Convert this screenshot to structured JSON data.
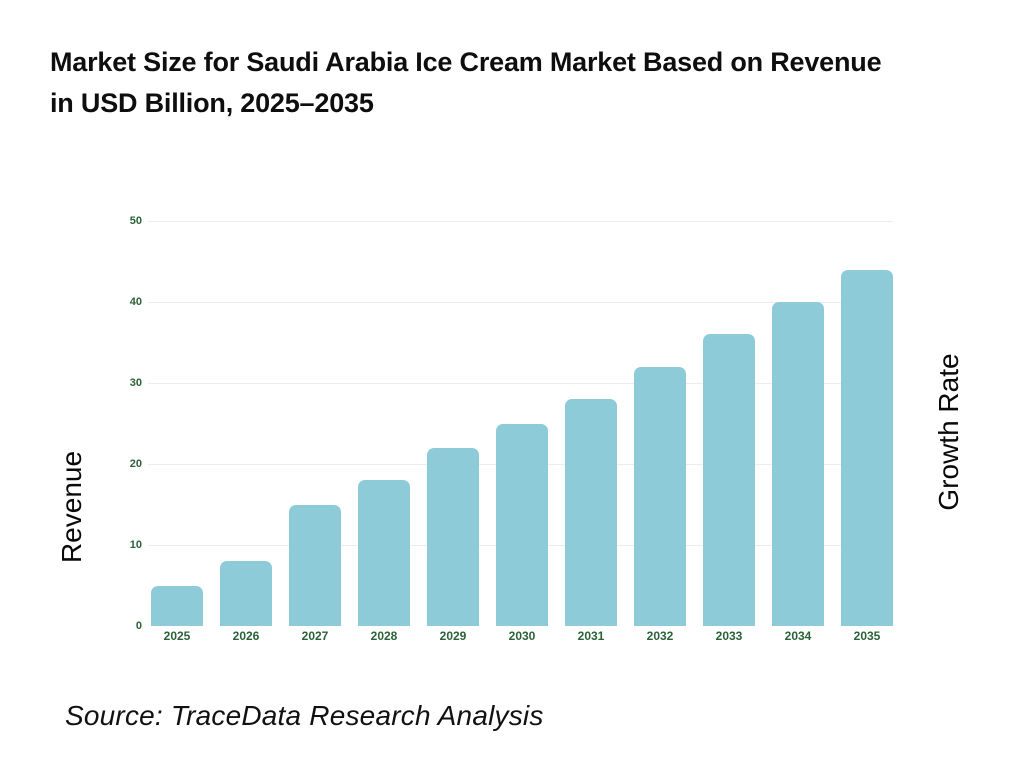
{
  "header": {
    "title_lines": [
      "Market Size for Saudi Arabia Ice Cream Market Based on Revenue",
      "in USD Billion, 2025–2035"
    ]
  },
  "chart_data": {
    "type": "bar",
    "title": "Market Size for Saudi Arabia Ice Cream Market Based on Revenue in USD Billion, 2025–2035",
    "categories": [
      "2025",
      "2026",
      "2027",
      "2028",
      "2029",
      "2030",
      "2031",
      "2032",
      "2033",
      "2034",
      "2035"
    ],
    "values": [
      5,
      8,
      15,
      18,
      22,
      25,
      28,
      32,
      36,
      40,
      44
    ],
    "xlabel": "",
    "ylabel_left": "Revenue",
    "ylabel_right": "Growth Rate",
    "ylim": [
      0,
      50
    ],
    "yticks": [
      0,
      10,
      20,
      30,
      40,
      50
    ],
    "grid": true,
    "legend": "none",
    "colors": {
      "bar": "#8ECBD9",
      "tick_label": "#2B6138",
      "gridline": "#ECECEC",
      "title_text": "#0E0E0E",
      "axis_label_text": "#0A0A0A"
    }
  },
  "footer": {
    "source_text": "Source: TraceData Research Analysis"
  }
}
